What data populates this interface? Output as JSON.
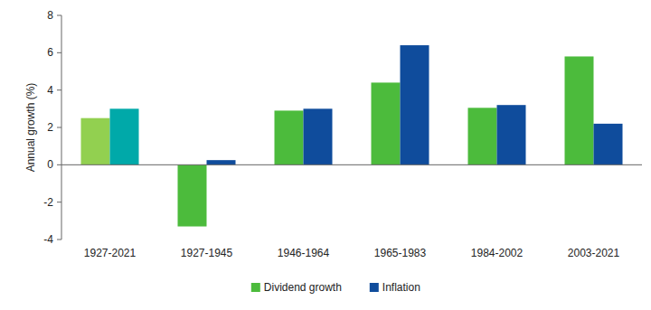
{
  "chart_data": {
    "type": "bar",
    "y_label": "Annual growth (%)",
    "categories": [
      "1927-2021",
      "1927-1945",
      "1946-1964",
      "1965-1983",
      "1984-2002",
      "2003-2021"
    ],
    "series": [
      {
        "name": "Dividend growth",
        "color": "#4cbb3c",
        "colors": [
          "#92d050",
          "#4cbb3c",
          "#4cbb3c",
          "#4cbb3c",
          "#4cbb3c",
          "#4cbb3c"
        ],
        "values": [
          2.5,
          -3.3,
          2.9,
          4.4,
          3.05,
          5.8
        ]
      },
      {
        "name": "Inflation",
        "color": "#0f4c9c",
        "colors": [
          "#00a9a9",
          "#0f4c9c",
          "#0f4c9c",
          "#0f4c9c",
          "#0f4c9c",
          "#0f4c9c"
        ],
        "values": [
          3.0,
          0.25,
          3.0,
          6.4,
          3.2,
          2.2
        ]
      }
    ],
    "ylim": [
      -4,
      8
    ],
    "yticks": [
      -4,
      -2,
      0,
      2,
      4,
      6,
      8
    ],
    "grid": false,
    "legend": "bottom"
  }
}
